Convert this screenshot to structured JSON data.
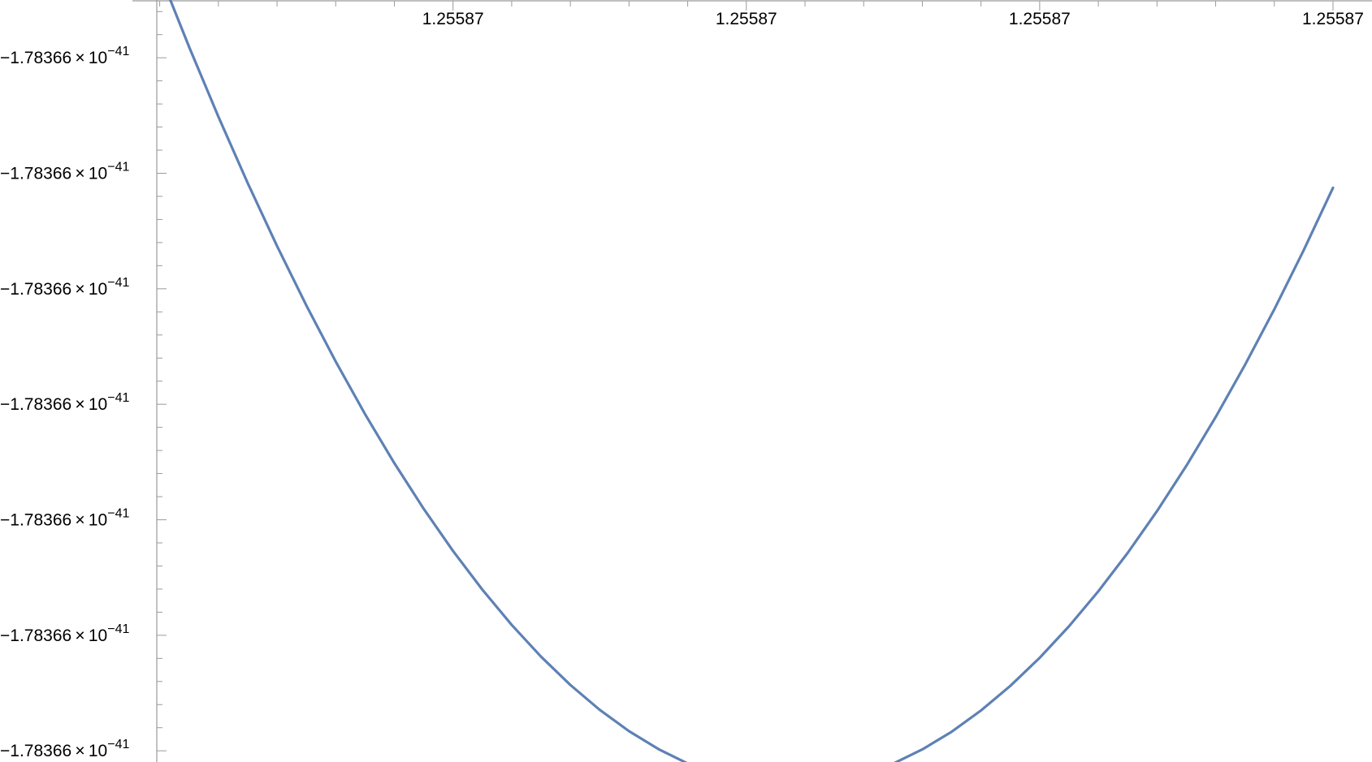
{
  "chart_data": {
    "type": "line",
    "title": "",
    "xlabel": "",
    "ylabel": "",
    "x_tick_labels": [
      "1.25587",
      "1.25587",
      "1.25587",
      "1.25587"
    ],
    "y_tick_labels": [
      {
        "mantissa": "−1.78366",
        "times": "×",
        "base": "10",
        "exponent": "−41"
      },
      {
        "mantissa": "−1.78366",
        "times": "×",
        "base": "10",
        "exponent": "−41"
      },
      {
        "mantissa": "−1.78366",
        "times": "×",
        "base": "10",
        "exponent": "−41"
      },
      {
        "mantissa": "−1.78366",
        "times": "×",
        "base": "10",
        "exponent": "−41"
      },
      {
        "mantissa": "−1.78366",
        "times": "×",
        "base": "10",
        "exponent": "−41"
      },
      {
        "mantissa": "−1.78366",
        "times": "×",
        "base": "10",
        "exponent": "−41"
      },
      {
        "mantissa": "−1.78366",
        "times": "×",
        "base": "10",
        "exponent": "−41"
      }
    ],
    "x_ticks": [
      1,
      2,
      3,
      4
    ],
    "y_ticks": [
      6,
      5,
      4,
      3,
      2,
      1,
      0
    ],
    "xlim": [
      -0.01,
      4.025
    ],
    "ylim": [
      -0.09,
      6.5
    ],
    "grid": false,
    "legend": "none",
    "series": [
      {
        "color": "#5e81b5",
        "x": [
          0.0,
          0.1,
          0.2,
          0.3,
          0.4,
          0.5,
          0.6,
          0.7,
          0.8,
          0.9,
          1.0,
          1.1,
          1.2,
          1.3,
          1.4,
          1.5,
          1.6,
          1.7,
          1.8,
          1.9,
          2.0,
          2.1,
          2.1369,
          2.2,
          2.3,
          2.4,
          2.5,
          2.6,
          2.7,
          2.8,
          2.9,
          3.0,
          3.1,
          3.2,
          3.3,
          3.4,
          3.5,
          3.6,
          3.7,
          3.8,
          3.9,
          4.0
        ],
        "y": [
          6.73,
          6.095,
          5.49,
          4.915,
          4.37,
          3.855,
          3.37,
          2.915,
          2.49,
          2.095,
          1.73,
          1.395,
          1.09,
          0.815,
          0.57,
          0.355,
          0.17,
          0.015,
          -0.11,
          -0.205,
          -0.27,
          -0.305,
          -0.31,
          -0.304,
          -0.27,
          -0.206,
          -0.112,
          0.012,
          0.165,
          0.349,
          0.562,
          0.805,
          1.078,
          1.381,
          1.713,
          2.075,
          2.467,
          2.889,
          3.341,
          3.822,
          4.333,
          4.874
        ]
      }
    ]
  }
}
